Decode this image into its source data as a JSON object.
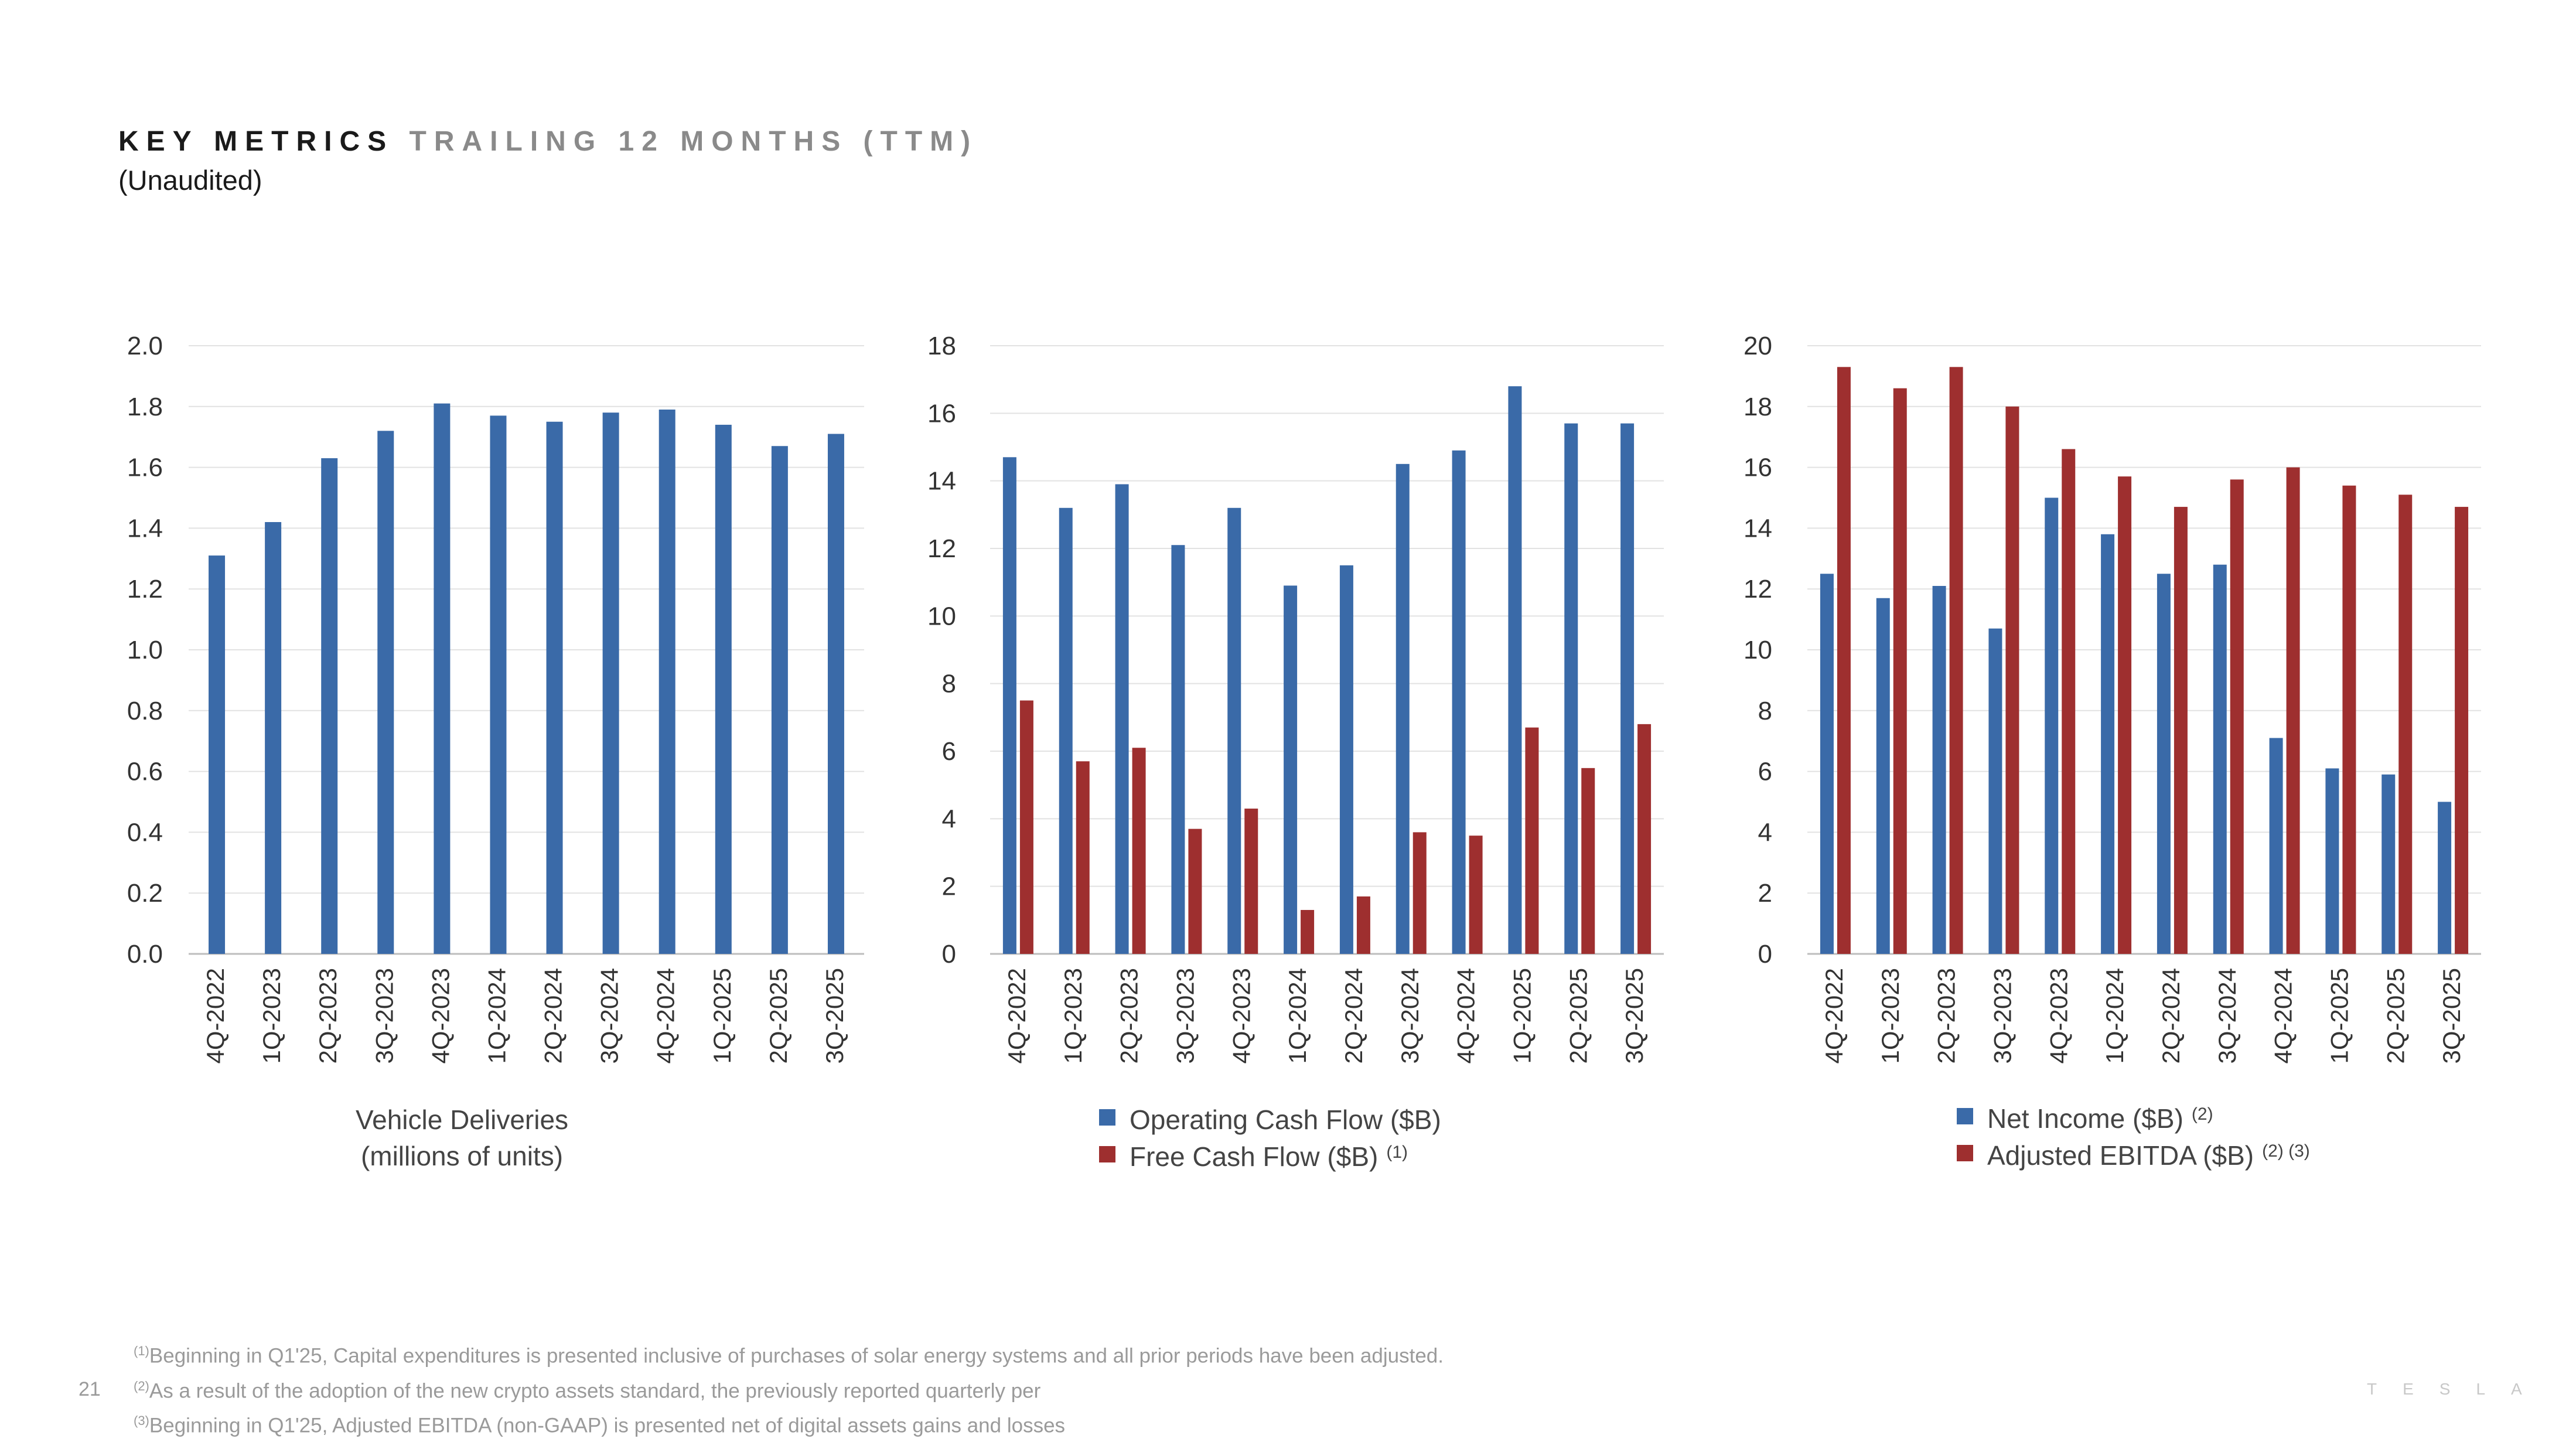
{
  "header": {
    "title_bold": "KEY METRICS",
    "title_light": "TRAILING 12 MONTHS (TTM)",
    "subtitle": "(Unaudited)"
  },
  "footnotes": [
    {
      "mark": "(1)",
      "text": "Beginning in Q1'25, Capital expenditures is presented inclusive of purchases of solar energy systems and all prior periods have been adjusted."
    },
    {
      "mark": "(2)",
      "text": "As a result of the adoption of the new crypto assets standard, the previously reported quarterly per"
    },
    {
      "mark": "(3)",
      "text": "Beginning in Q1'25, Adjusted EBITDA (non-GAAP) is presented net of digital assets gains and losses"
    }
  ],
  "page_number": "21",
  "brand": "TESLA",
  "colors": {
    "blue": "#3a6aa8",
    "red": "#9e2f2f",
    "grid": "#e2e2e2",
    "axis": "#bdbdbd",
    "text": "#333333"
  },
  "chart_data": [
    {
      "type": "bar",
      "categories": [
        "4Q-2022",
        "1Q-2023",
        "2Q-2023",
        "3Q-2023",
        "4Q-2023",
        "1Q-2024",
        "2Q-2024",
        "3Q-2024",
        "4Q-2024",
        "1Q-2025",
        "2Q-2025",
        "3Q-2025"
      ],
      "ylim": [
        0,
        2.0
      ],
      "yticks": [
        "0.0",
        "0.2",
        "0.4",
        "0.6",
        "0.8",
        "1.0",
        "1.2",
        "1.4",
        "1.6",
        "1.8",
        "2.0"
      ],
      "series": [
        {
          "name": "Vehicle Deliveries",
          "color": "#3a6aa8",
          "values": [
            1.31,
            1.42,
            1.63,
            1.72,
            1.81,
            1.77,
            1.75,
            1.78,
            1.79,
            1.74,
            1.67,
            1.71
          ]
        }
      ],
      "label_lines": [
        "Vehicle Deliveries",
        "(millions of units)"
      ]
    },
    {
      "type": "bar",
      "categories": [
        "4Q-2022",
        "1Q-2023",
        "2Q-2023",
        "3Q-2023",
        "4Q-2023",
        "1Q-2024",
        "2Q-2024",
        "3Q-2024",
        "4Q-2024",
        "1Q-2025",
        "2Q-2025",
        "3Q-2025"
      ],
      "ylim": [
        0,
        18
      ],
      "yticks": [
        "0",
        "2",
        "4",
        "6",
        "8",
        "10",
        "12",
        "14",
        "16",
        "18"
      ],
      "series": [
        {
          "name": "Operating Cash Flow ($B)",
          "sup": "",
          "color": "#3a6aa8",
          "values": [
            14.7,
            13.2,
            13.9,
            12.1,
            13.2,
            10.9,
            11.5,
            14.5,
            14.9,
            16.8,
            15.7,
            15.7
          ]
        },
        {
          "name": "Free Cash Flow ($B)",
          "sup": "(1)",
          "color": "#9e2f2f",
          "values": [
            7.5,
            5.7,
            6.1,
            3.7,
            4.3,
            1.3,
            1.7,
            3.6,
            3.5,
            6.7,
            5.5,
            6.8
          ]
        }
      ]
    },
    {
      "type": "bar",
      "categories": [
        "4Q-2022",
        "1Q-2023",
        "2Q-2023",
        "3Q-2023",
        "4Q-2023",
        "1Q-2024",
        "2Q-2024",
        "3Q-2024",
        "4Q-2024",
        "1Q-2025",
        "2Q-2025",
        "3Q-2025"
      ],
      "ylim": [
        0,
        20
      ],
      "yticks": [
        "0",
        "2",
        "4",
        "6",
        "8",
        "10",
        "12",
        "14",
        "16",
        "18",
        "20"
      ],
      "series": [
        {
          "name": "Net Income ($B)",
          "sup": "(2)",
          "color": "#3a6aa8",
          "values": [
            12.5,
            11.7,
            12.1,
            10.7,
            15.0,
            13.8,
            12.5,
            12.8,
            7.1,
            6.1,
            5.9,
            5.0
          ]
        },
        {
          "name": "Adjusted EBITDA ($B)",
          "sup": "(2) (3)",
          "color": "#9e2f2f",
          "values": [
            19.3,
            18.6,
            19.3,
            18.0,
            16.6,
            15.7,
            14.7,
            15.6,
            16.0,
            15.4,
            15.1,
            14.7
          ]
        }
      ]
    }
  ]
}
